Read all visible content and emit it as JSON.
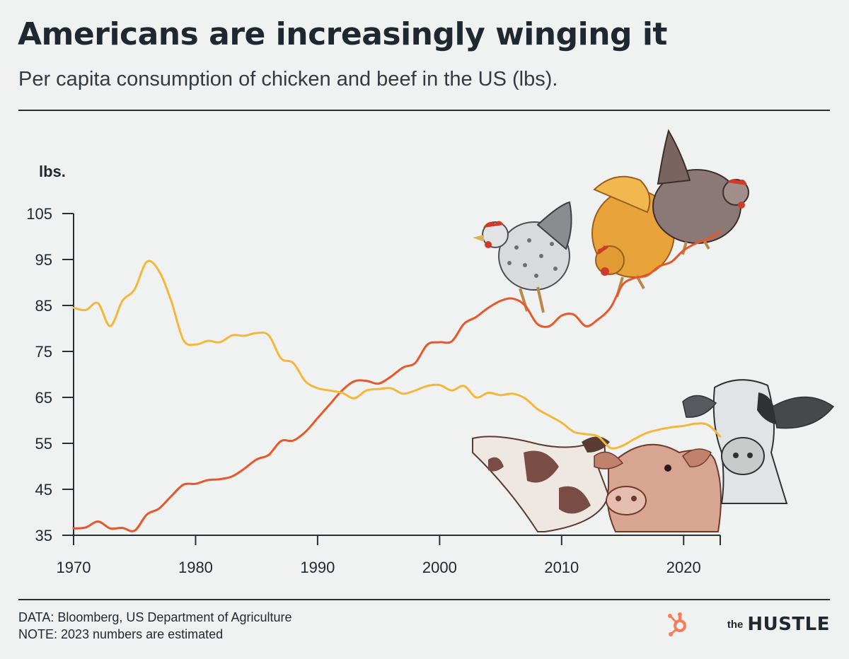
{
  "header": {
    "title": "Americans are increasingly winging it",
    "subtitle": "Per capita consumption of chicken and beef in the US (lbs)."
  },
  "footer": {
    "data_source": "DATA: Bloomberg, US Department of Agriculture",
    "note": "NOTE: 2023 numbers are estimated",
    "brand_prefix": "the",
    "brand_name": "HUSTLE"
  },
  "colors": {
    "background": "#f0f2f1",
    "chicken": "#e8572a",
    "beef": "#f5b73b",
    "axis": "#2a2f33",
    "brand_logo": "#ff7a59"
  },
  "chart_data": {
    "type": "line",
    "ylabel": "lbs.",
    "xlabel": "",
    "xlim": [
      1970,
      2023
    ],
    "ylim": [
      35,
      105
    ],
    "x_ticks": [
      "1970",
      "1980",
      "1990",
      "2000",
      "2010",
      "2020"
    ],
    "y_ticks": [
      "35",
      "45",
      "55",
      "65",
      "75",
      "85",
      "95",
      "105"
    ],
    "x": [
      1970,
      1971,
      1972,
      1973,
      1974,
      1975,
      1976,
      1977,
      1978,
      1979,
      1980,
      1981,
      1982,
      1983,
      1984,
      1985,
      1986,
      1987,
      1988,
      1989,
      1990,
      1991,
      1992,
      1993,
      1994,
      1995,
      1996,
      1997,
      1998,
      1999,
      2000,
      2001,
      2002,
      2003,
      2004,
      2005,
      2006,
      2007,
      2008,
      2009,
      2010,
      2011,
      2012,
      2013,
      2014,
      2015,
      2016,
      2017,
      2018,
      2019,
      2020,
      2021,
      2022,
      2023
    ],
    "series": [
      {
        "key": "chicken",
        "color": "#e8572a",
        "values": [
          36.5,
          36.7,
          38.0,
          36.5,
          36.6,
          36.0,
          39.5,
          40.8,
          43.5,
          46.0,
          46.2,
          47.0,
          47.2,
          47.8,
          49.5,
          51.5,
          52.5,
          55.5,
          55.6,
          57.5,
          60.5,
          63.5,
          66.5,
          68.5,
          68.6,
          68.0,
          69.5,
          71.5,
          72.5,
          76.5,
          77.0,
          77.2,
          81.0,
          82.5,
          84.5,
          86.0,
          86.5,
          85.0,
          81.0,
          80.5,
          82.8,
          83.0,
          80.5,
          82.0,
          84.5,
          89.5,
          91.0,
          91.5,
          93.5,
          94.5,
          97.0,
          98.5,
          99.5,
          101.0
        ]
      },
      {
        "key": "beef",
        "color": "#f5b73b",
        "values": [
          84.5,
          84.0,
          85.5,
          80.5,
          86.0,
          88.5,
          94.5,
          92.5,
          86.0,
          77.5,
          76.5,
          77.3,
          77.0,
          78.5,
          78.4,
          79.0,
          78.5,
          73.5,
          72.5,
          68.5,
          67.0,
          66.5,
          66.0,
          64.8,
          66.5,
          66.8,
          67.0,
          65.8,
          66.5,
          67.5,
          67.7,
          66.5,
          67.5,
          65.0,
          66.0,
          65.5,
          65.8,
          64.8,
          62.5,
          61.0,
          59.5,
          57.5,
          57.0,
          56.5,
          54.0,
          54.5,
          56.0,
          57.3,
          58.0,
          58.5,
          58.8,
          59.3,
          59.0,
          56.5
        ]
      }
    ]
  }
}
